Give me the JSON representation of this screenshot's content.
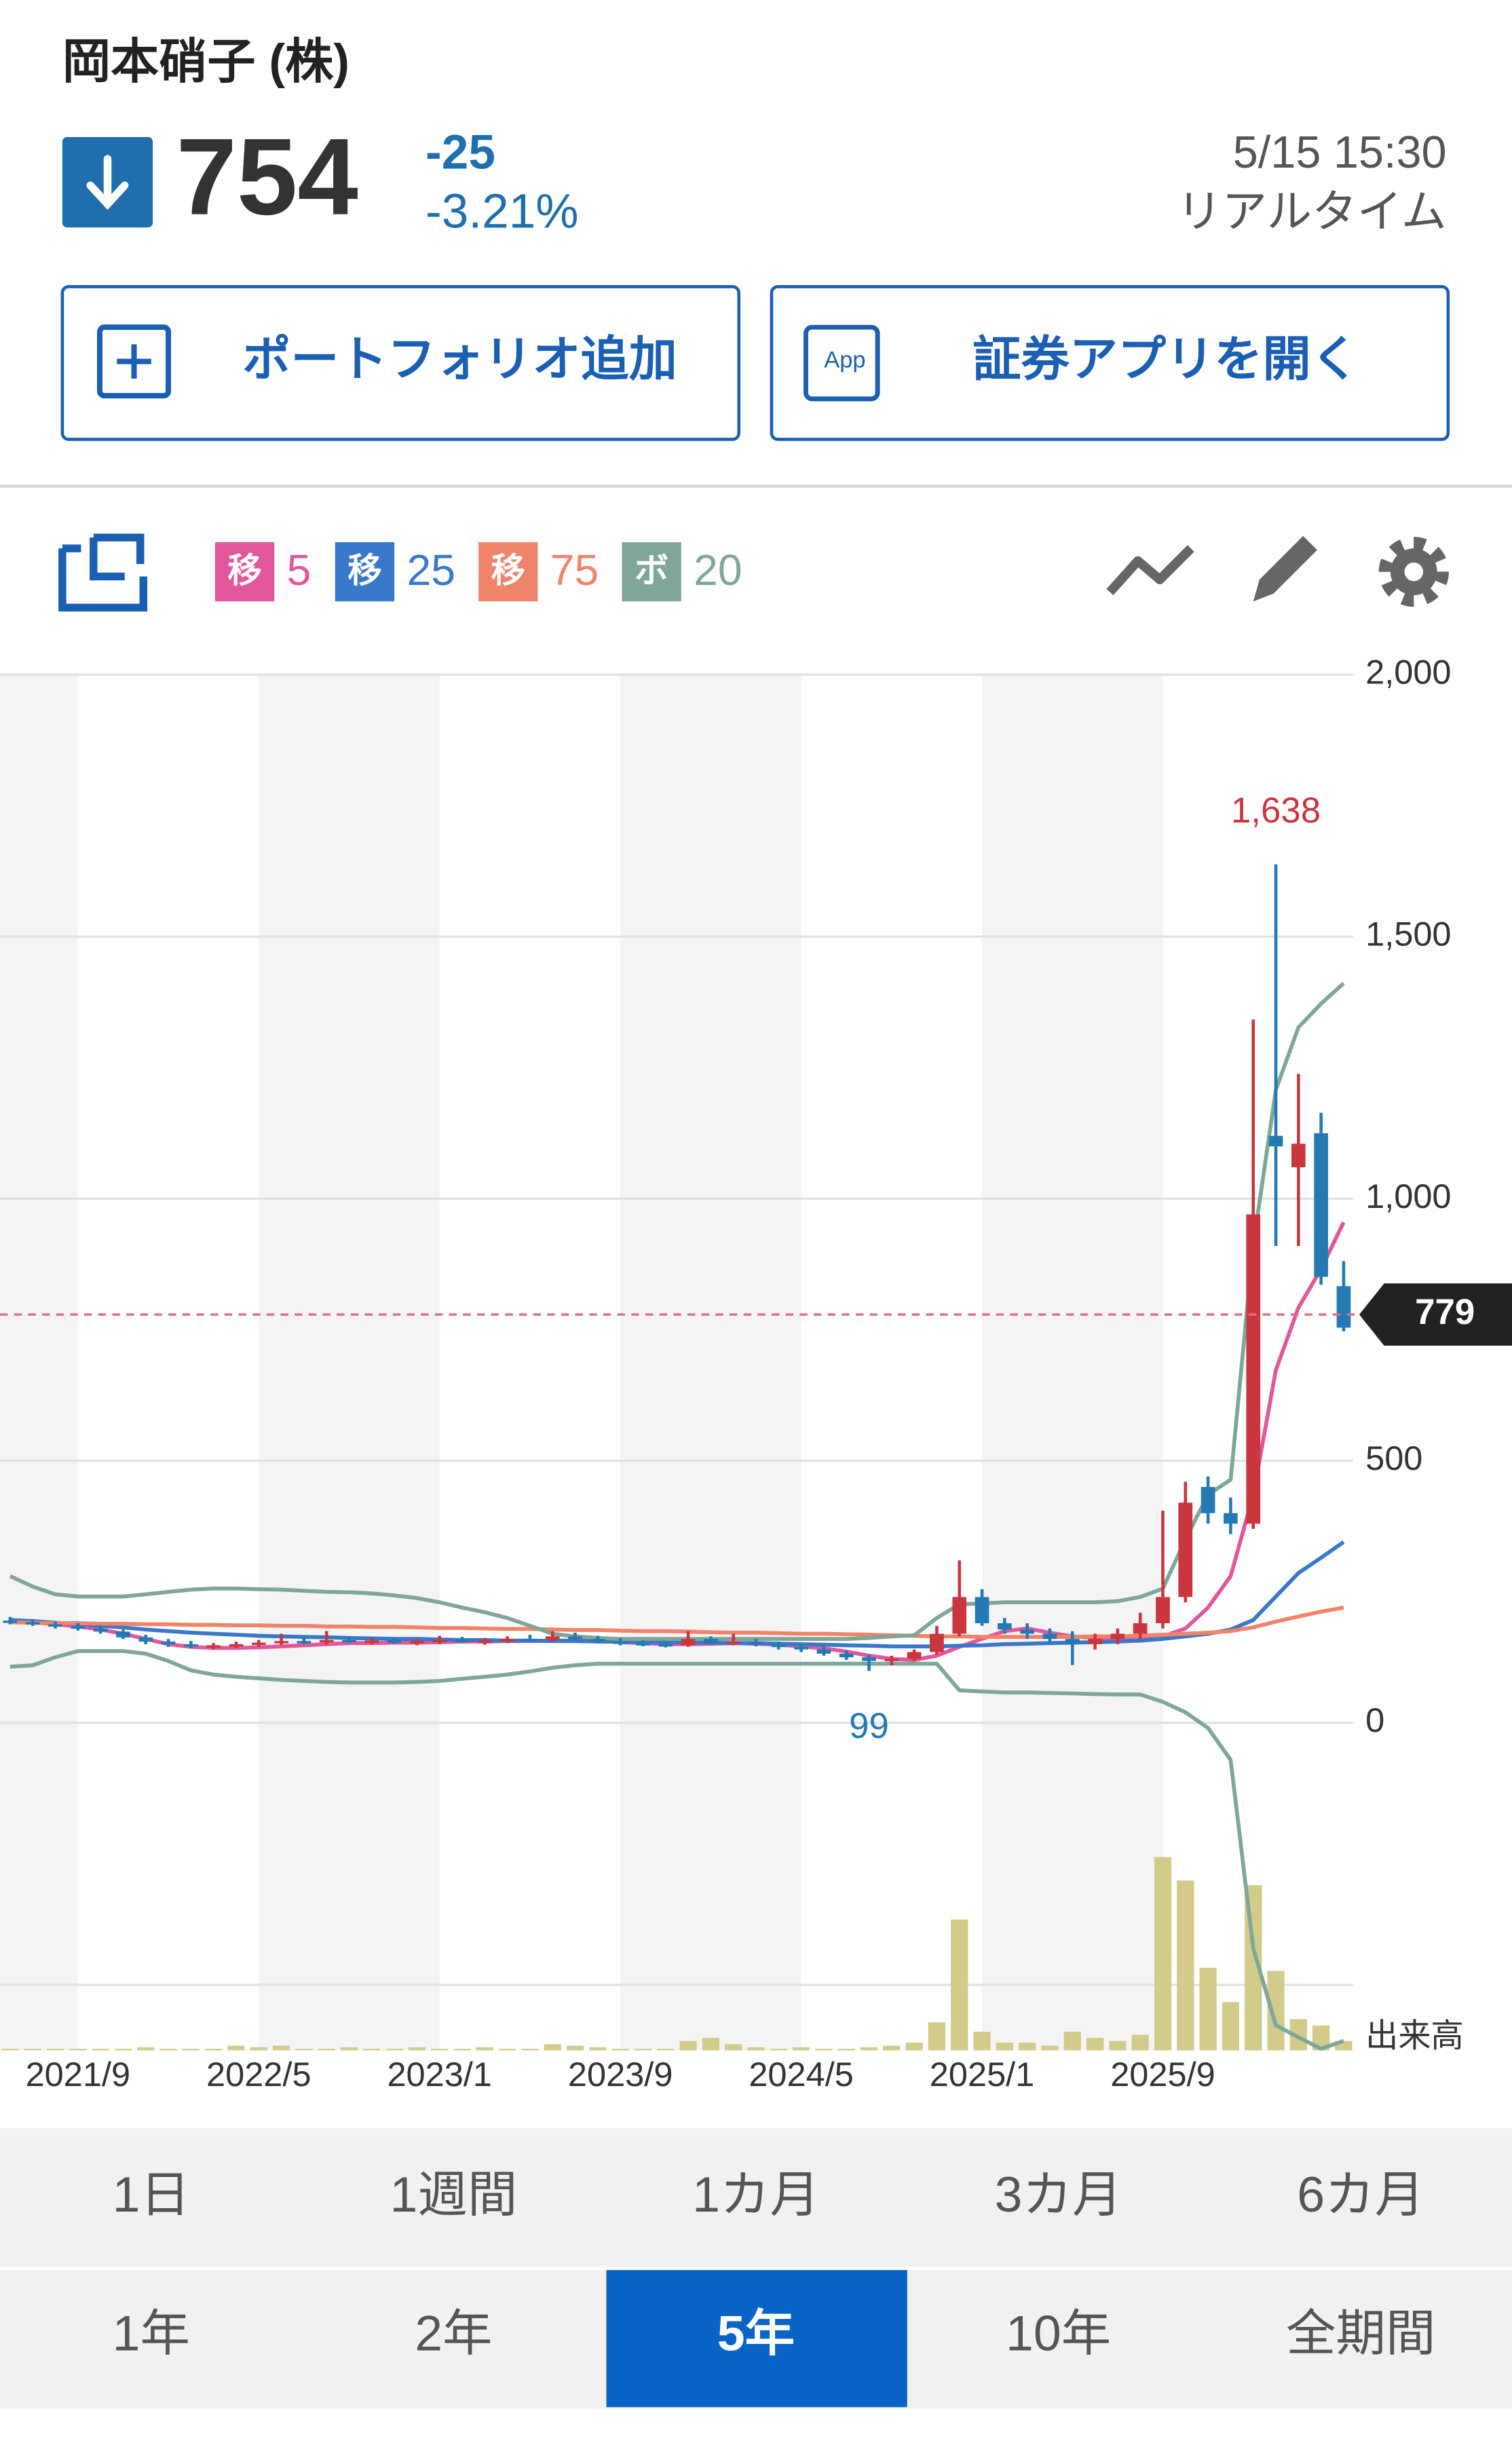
{
  "header": {
    "title": "岡本硝子 (株)",
    "price": "754",
    "change": "-25",
    "change_pct": "-3.21%",
    "time": "5/15 15:30",
    "status": "リアルタイム"
  },
  "buttons": [
    {
      "label": "ポートフォリオ追加"
    },
    {
      "label": "証券アプリを開く",
      "icon": "App"
    }
  ],
  "chart_data": {
    "type": "candlestick",
    "categories": [
      null,
      null,
      null,
      "2021/9",
      null,
      null,
      null,
      null,
      null,
      null,
      null,
      "2022/5",
      null,
      null,
      null,
      null,
      null,
      null,
      null,
      "2023/1",
      null,
      null,
      null,
      null,
      null,
      null,
      null,
      "2023/9",
      null,
      null,
      null,
      null,
      null,
      null,
      null,
      "2024/5",
      null,
      null,
      null,
      null,
      null,
      null,
      null,
      "2025/1",
      null,
      null,
      null,
      null,
      null,
      null,
      null,
      "2025/9",
      null,
      null,
      null,
      null,
      null,
      null,
      null,
      null
    ],
    "ohlc": [
      [
        195,
        202,
        188,
        192
      ],
      [
        192,
        198,
        185,
        188
      ],
      [
        188,
        193,
        180,
        184
      ],
      [
        184,
        190,
        176,
        180
      ],
      [
        180,
        186,
        170,
        174
      ],
      [
        174,
        178,
        160,
        163
      ],
      [
        163,
        168,
        150,
        155
      ],
      [
        155,
        160,
        145,
        150
      ],
      [
        150,
        156,
        142,
        146
      ],
      [
        146,
        152,
        140,
        148
      ],
      [
        148,
        155,
        143,
        150
      ],
      [
        150,
        158,
        145,
        153
      ],
      [
        153,
        170,
        148,
        156
      ],
      [
        156,
        162,
        150,
        154
      ],
      [
        154,
        175,
        149,
        158
      ],
      [
        158,
        165,
        152,
        155
      ],
      [
        155,
        162,
        150,
        157
      ],
      [
        157,
        163,
        151,
        154
      ],
      [
        154,
        160,
        148,
        156
      ],
      [
        156,
        166,
        150,
        158
      ],
      [
        158,
        164,
        152,
        155
      ],
      [
        155,
        162,
        149,
        157
      ],
      [
        157,
        165,
        152,
        160
      ],
      [
        160,
        168,
        154,
        158
      ],
      [
        158,
        175,
        155,
        165
      ],
      [
        165,
        172,
        158,
        160
      ],
      [
        160,
        166,
        152,
        155
      ],
      [
        155,
        162,
        148,
        152
      ],
      [
        152,
        158,
        146,
        150
      ],
      [
        150,
        156,
        144,
        148
      ],
      [
        148,
        175,
        145,
        160
      ],
      [
        160,
        165,
        150,
        152
      ],
      [
        152,
        170,
        148,
        155
      ],
      [
        155,
        160,
        146,
        149
      ],
      [
        149,
        155,
        140,
        145
      ],
      [
        145,
        150,
        135,
        140
      ],
      [
        140,
        146,
        128,
        132
      ],
      [
        132,
        138,
        120,
        125
      ],
      [
        125,
        130,
        99,
        118
      ],
      [
        118,
        128,
        110,
        122
      ],
      [
        122,
        140,
        118,
        135
      ],
      [
        135,
        185,
        130,
        170
      ],
      [
        170,
        310,
        165,
        240
      ],
      [
        240,
        255,
        185,
        190
      ],
      [
        190,
        200,
        170,
        178
      ],
      [
        178,
        190,
        160,
        170
      ],
      [
        170,
        180,
        150,
        160
      ],
      [
        160,
        175,
        110,
        150
      ],
      [
        150,
        170,
        140,
        160
      ],
      [
        160,
        180,
        150,
        170
      ],
      [
        170,
        210,
        160,
        190
      ],
      [
        190,
        405,
        180,
        240
      ],
      [
        240,
        460,
        230,
        420
      ],
      [
        450,
        470,
        380,
        400
      ],
      [
        400,
        430,
        360,
        380
      ],
      [
        380,
        1342,
        370,
        970
      ],
      [
        1120,
        1638,
        910,
        1100
      ],
      [
        1060,
        1238,
        910,
        1105
      ],
      [
        1125,
        1164,
        836,
        851
      ],
      [
        833,
        881,
        747,
        754
      ]
    ],
    "up_color": "#c9363e",
    "down_color": "#2479b5",
    "lines": [
      {
        "badge": "移",
        "period": 5,
        "color": "#e2579c",
        "values": [
          196,
          192,
          188,
          184,
          178,
          170,
          160,
          150,
          145,
          143,
          143,
          144,
          146,
          148,
          150,
          152,
          152,
          153,
          153,
          154,
          155,
          155,
          156,
          156,
          157,
          157,
          156,
          154,
          152,
          150,
          150,
          151,
          152,
          151,
          149,
          146,
          142,
          136,
          128,
          122,
          120,
          128,
          145,
          160,
          175,
          180,
          172,
          165,
          162,
          160,
          160,
          165,
          180,
          220,
          280,
          435,
          673,
          792,
          866,
          955
        ]
      },
      {
        "badge": "移",
        "period": 25,
        "color": "#3a78c9",
        "values": [
          196,
          194,
          191,
          188,
          185,
          182,
          178,
          175,
          172,
          170,
          168,
          166,
          165,
          164,
          163,
          162,
          161,
          160,
          160,
          159,
          158,
          158,
          157,
          157,
          156,
          156,
          155,
          155,
          154,
          154,
          153,
          153,
          152,
          152,
          151,
          150,
          149,
          148,
          147,
          146,
          146,
          146,
          147,
          148,
          150,
          151,
          152,
          153,
          154,
          155,
          157,
          160,
          165,
          170,
          178,
          196,
          241,
          286,
          315,
          345
        ]
      },
      {
        "badge": "移",
        "period": 75,
        "color": "#f0846a",
        "values": [
          192,
          191,
          190,
          190,
          189,
          189,
          188,
          188,
          187,
          187,
          186,
          186,
          185,
          185,
          184,
          184,
          183,
          183,
          182,
          181,
          181,
          180,
          179,
          179,
          178,
          177,
          177,
          176,
          175,
          175,
          174,
          173,
          172,
          172,
          171,
          170,
          170,
          169,
          168,
          167,
          166,
          165,
          165,
          164,
          164,
          164,
          164,
          164,
          165,
          165,
          166,
          168,
          170,
          172,
          175,
          182,
          193,
          203,
          212,
          220
        ]
      },
      {
        "badge": "ボ",
        "period": 20,
        "color": "#7ea797",
        "upper": [
          280,
          260,
          245,
          241,
          241,
          241,
          245,
          250,
          254,
          256,
          256,
          255,
          254,
          252,
          250,
          249,
          247,
          243,
          238,
          230,
          220,
          211,
          200,
          185,
          170,
          165,
          162,
          160,
          160,
          160,
          160,
          160,
          160,
          160,
          160,
          160,
          160,
          160,
          162,
          165,
          167,
          200,
          226,
          228,
          230,
          230,
          230,
          230,
          230,
          232,
          240,
          256,
          350,
          435,
          464,
          911,
          1208,
          1327,
          1372,
          1411
        ],
        "lower": [
          107,
          110,
          125,
          137,
          137,
          137,
          132,
          118,
          100,
          92,
          88,
          85,
          82,
          80,
          78,
          77,
          77,
          77,
          78,
          80,
          84,
          88,
          92,
          98,
          105,
          110,
          113,
          113,
          113,
          113,
          113,
          113,
          113,
          113,
          113,
          113,
          113,
          113,
          113,
          113,
          113,
          113,
          62,
          60,
          58,
          58,
          57,
          56,
          55,
          54,
          54,
          40,
          20,
          -10,
          -71,
          -430,
          -577,
          -600,
          -622,
          -607
        ]
      }
    ],
    "volume": [
      1,
      1,
      1,
      1,
      1,
      1,
      2,
      1,
      1,
      1,
      3,
      2,
      3,
      1,
      1,
      2,
      1,
      1,
      2,
      1,
      1,
      2,
      1,
      1,
      4,
      3,
      2,
      1,
      1,
      1,
      6,
      8,
      4,
      2,
      1,
      2,
      1,
      1,
      2,
      3,
      5,
      18,
      84,
      12,
      5,
      5,
      3,
      12,
      8,
      6,
      10,
      124,
      109,
      53,
      31,
      106,
      51,
      20,
      16,
      6
    ],
    "volume_label": "出来高",
    "volume_color": "#d3cb89",
    "ylim": [
      -625,
      2000
    ],
    "yticks": [
      {
        "value": -500,
        "label": null
      },
      0,
      500,
      {
        "value": 1000,
        "label": "1,000"
      },
      {
        "value": 1500,
        "label": "1,500"
      },
      {
        "value": 2000,
        "label": "2,000"
      }
    ],
    "grid": true,
    "price_line": 779,
    "annotations": {
      "high": {
        "value": 1638,
        "label": "1,638"
      },
      "low": 99
    }
  },
  "ranges": [
    "1日",
    "1週間",
    "1カ月",
    "3カ月",
    "6カ月",
    "1年",
    "2年",
    "5年",
    "10年",
    "全期間"
  ],
  "selected_range": "5年"
}
